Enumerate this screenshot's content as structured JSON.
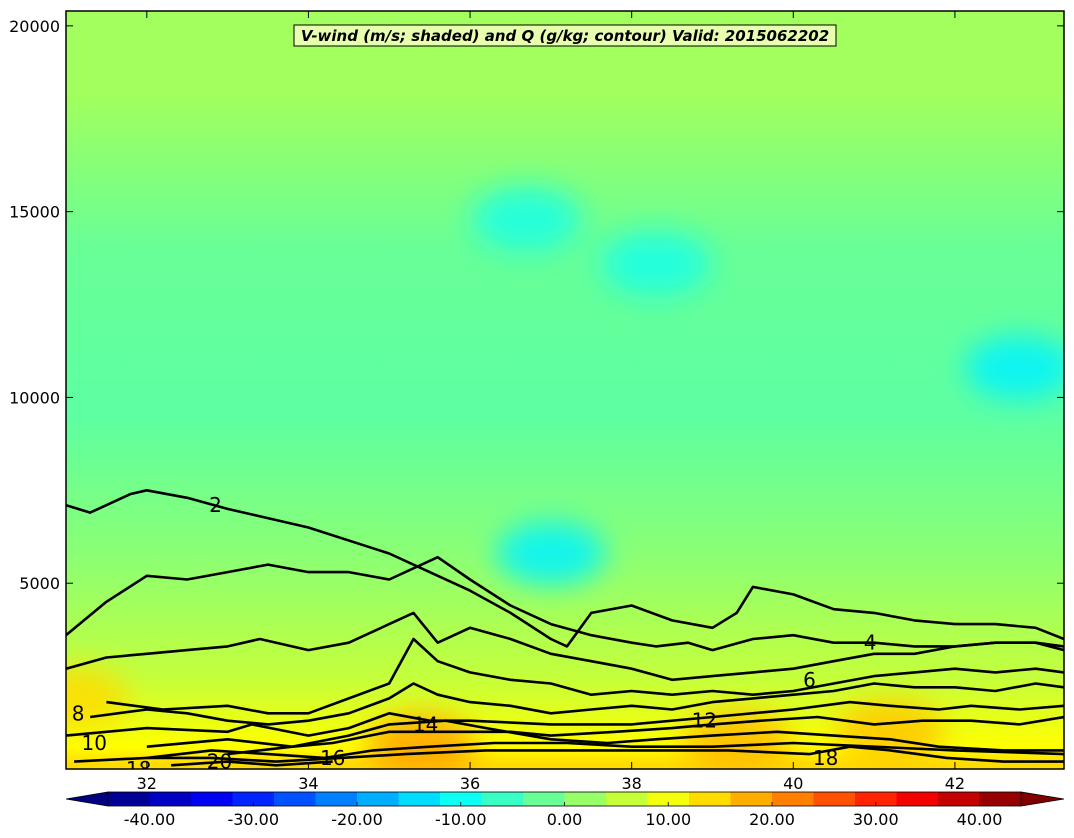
{
  "chart_data": {
    "type": "heatmap",
    "title": "V-wind (m/s; shaded) and Q (g/kg; contour) Valid: 2015062202",
    "xlabel": "",
    "ylabel": "",
    "xlim": [
      31.0,
      43.35
    ],
    "ylim": [
      0,
      20400
    ],
    "x_ticks": [
      32,
      34,
      36,
      38,
      40,
      42
    ],
    "y_ticks": [
      5000,
      10000,
      15000,
      20000
    ],
    "grid": false,
    "shaded_variable": "V-wind (m/s)",
    "contour_variable": "Q (g/kg)",
    "colorbar": {
      "orientation": "horizontal",
      "placement": "bottom",
      "min": -44,
      "max": 44,
      "extend": "both",
      "tick_values": [
        -40,
        -30,
        -20,
        -10,
        0,
        10,
        20,
        30,
        40
      ],
      "tick_labels": [
        "-40.00",
        "-30.00",
        "-20.00",
        "-10.00",
        "0.00",
        "10.00",
        "20.00",
        "30.00",
        "40.00"
      ]
    },
    "shaded_levels": [
      {
        "z_min": 0,
        "z_max": 300,
        "v": 14
      },
      {
        "z_min": 300,
        "z_max": 900,
        "v": 11
      },
      {
        "z_min": 900,
        "z_max": 1800,
        "v": 9
      },
      {
        "z_min": 1800,
        "z_max": 3000,
        "v": 6
      },
      {
        "z_min": 3000,
        "z_max": 4500,
        "v": 4
      },
      {
        "z_min": 4500,
        "z_max": 7000,
        "v": 1
      },
      {
        "z_min": 7000,
        "z_max": 12000,
        "v": -3
      },
      {
        "z_min": 12000,
        "z_max": 16000,
        "v": -2
      },
      {
        "z_min": 16000,
        "z_max": 20400,
        "v": 3
      }
    ],
    "shaded_features": [
      {
        "x": 37.0,
        "y": 5800,
        "v": -12
      },
      {
        "x": 36.7,
        "y": 14800,
        "v": -9
      },
      {
        "x": 38.3,
        "y": 13600,
        "v": -9
      },
      {
        "x": 42.8,
        "y": 10800,
        "v": -12
      },
      {
        "x": 35.4,
        "y": 600,
        "v": 19
      },
      {
        "x": 39.3,
        "y": 700,
        "v": 17
      },
      {
        "x": 41.2,
        "y": 1000,
        "v": 16
      },
      {
        "x": 31.1,
        "y": 1900,
        "v": 14
      }
    ],
    "contours": [
      {
        "level": 2,
        "points": [
          [
            31.0,
            7100
          ],
          [
            31.3,
            6900
          ],
          [
            31.8,
            7400
          ],
          [
            32.0,
            7500
          ],
          [
            32.5,
            7300
          ],
          [
            33.0,
            7000
          ],
          [
            34.0,
            6500
          ],
          [
            35.0,
            5800
          ],
          [
            35.5,
            5300
          ],
          [
            36.0,
            4800
          ],
          [
            36.5,
            4200
          ],
          [
            37.0,
            3500
          ],
          [
            37.2,
            3300
          ],
          [
            37.5,
            4200
          ],
          [
            38.0,
            4400
          ],
          [
            38.5,
            4000
          ],
          [
            39.0,
            3800
          ],
          [
            39.3,
            4200
          ],
          [
            39.5,
            4900
          ],
          [
            40.0,
            4700
          ],
          [
            40.5,
            4300
          ],
          [
            41.0,
            4200
          ],
          [
            41.5,
            4000
          ],
          [
            42.0,
            3900
          ],
          [
            42.5,
            3900
          ],
          [
            43.0,
            3800
          ],
          [
            43.35,
            3500
          ]
        ]
      },
      {
        "level": 3,
        "points": [
          [
            31.0,
            3600
          ],
          [
            31.5,
            4500
          ],
          [
            32.0,
            5200
          ],
          [
            32.5,
            5100
          ],
          [
            33.0,
            5300
          ],
          [
            33.5,
            5500
          ],
          [
            34.0,
            5300
          ],
          [
            34.5,
            5300
          ],
          [
            35.0,
            5100
          ],
          [
            35.6,
            5700
          ],
          [
            36.0,
            5100
          ],
          [
            36.5,
            4400
          ],
          [
            37.0,
            3900
          ],
          [
            37.5,
            3600
          ],
          [
            38.0,
            3400
          ],
          [
            38.3,
            3300
          ],
          [
            38.7,
            3400
          ],
          [
            39.0,
            3200
          ],
          [
            39.5,
            3500
          ],
          [
            40.0,
            3600
          ],
          [
            40.5,
            3400
          ],
          [
            41.0,
            3400
          ],
          [
            41.5,
            3300
          ],
          [
            42.0,
            3300
          ],
          [
            42.5,
            3400
          ],
          [
            43.0,
            3400
          ],
          [
            43.35,
            3200
          ]
        ]
      },
      {
        "level": 4,
        "points": [
          [
            31.0,
            2700
          ],
          [
            31.5,
            3000
          ],
          [
            32.0,
            3100
          ],
          [
            32.5,
            3200
          ],
          [
            33.0,
            3300
          ],
          [
            33.4,
            3500
          ],
          [
            34.0,
            3200
          ],
          [
            34.5,
            3400
          ],
          [
            35.0,
            3900
          ],
          [
            35.3,
            4200
          ],
          [
            35.6,
            3400
          ],
          [
            36.0,
            3800
          ],
          [
            36.5,
            3500
          ],
          [
            37.0,
            3100
          ],
          [
            37.5,
            2900
          ],
          [
            38.0,
            2700
          ],
          [
            38.5,
            2400
          ],
          [
            39.0,
            2500
          ],
          [
            39.5,
            2600
          ],
          [
            40.0,
            2700
          ],
          [
            40.5,
            2900
          ],
          [
            41.0,
            3100
          ],
          [
            41.5,
            3100
          ],
          [
            42.0,
            3300
          ],
          [
            42.5,
            3400
          ],
          [
            43.0,
            3400
          ],
          [
            43.35,
            3300
          ]
        ]
      },
      {
        "level": 6,
        "points": [
          [
            31.5,
            1800
          ],
          [
            32.2,
            1600
          ],
          [
            33.0,
            1700
          ],
          [
            33.5,
            1500
          ],
          [
            34.0,
            1500
          ],
          [
            34.5,
            1900
          ],
          [
            35.0,
            2300
          ],
          [
            35.3,
            3500
          ],
          [
            35.6,
            2900
          ],
          [
            36.0,
            2600
          ],
          [
            36.5,
            2400
          ],
          [
            37.0,
            2300
          ],
          [
            37.5,
            2000
          ],
          [
            38.0,
            2100
          ],
          [
            38.5,
            2000
          ],
          [
            39.0,
            2100
          ],
          [
            39.5,
            2000
          ],
          [
            40.0,
            2100
          ],
          [
            40.5,
            2300
          ],
          [
            41.0,
            2500
          ],
          [
            41.5,
            2600
          ],
          [
            42.0,
            2700
          ],
          [
            42.5,
            2600
          ],
          [
            43.0,
            2700
          ],
          [
            43.35,
            2600
          ]
        ]
      },
      {
        "level": 8,
        "points": [
          [
            31.3,
            1400
          ],
          [
            32.0,
            1600
          ],
          [
            32.5,
            1500
          ],
          [
            33.0,
            1300
          ],
          [
            33.5,
            1200
          ],
          [
            34.0,
            1300
          ],
          [
            34.5,
            1500
          ],
          [
            35.0,
            1900
          ],
          [
            35.3,
            2300
          ],
          [
            35.6,
            2000
          ],
          [
            36.0,
            1800
          ],
          [
            36.5,
            1700
          ],
          [
            37.0,
            1500
          ],
          [
            37.5,
            1600
          ],
          [
            38.0,
            1700
          ],
          [
            38.5,
            1600
          ],
          [
            39.0,
            1800
          ],
          [
            39.5,
            1900
          ],
          [
            40.0,
            2000
          ],
          [
            40.5,
            2100
          ],
          [
            41.0,
            2300
          ],
          [
            41.5,
            2200
          ],
          [
            42.0,
            2200
          ],
          [
            42.5,
            2100
          ],
          [
            43.0,
            2300
          ],
          [
            43.35,
            2200
          ]
        ]
      },
      {
        "level": 10,
        "points": [
          [
            31.0,
            900
          ],
          [
            32.0,
            1100
          ],
          [
            33.0,
            1000
          ],
          [
            33.3,
            1200
          ],
          [
            34.0,
            900
          ],
          [
            34.5,
            1100
          ],
          [
            35.0,
            1500
          ],
          [
            35.5,
            1300
          ],
          [
            36.0,
            1300
          ],
          [
            37.0,
            1200
          ],
          [
            38.0,
            1200
          ],
          [
            39.0,
            1400
          ],
          [
            40.0,
            1600
          ],
          [
            40.7,
            1800
          ],
          [
            41.2,
            1700
          ],
          [
            41.8,
            1600
          ],
          [
            42.2,
            1700
          ],
          [
            42.8,
            1600
          ],
          [
            43.35,
            1700
          ]
        ]
      },
      {
        "level": 12,
        "points": [
          [
            32.0,
            600
          ],
          [
            33.0,
            800
          ],
          [
            33.8,
            600
          ],
          [
            34.3,
            700
          ],
          [
            35.0,
            1000
          ],
          [
            35.5,
            1000
          ],
          [
            36.0,
            1000
          ],
          [
            36.5,
            1000
          ],
          [
            37.0,
            900
          ],
          [
            37.8,
            1000
          ],
          [
            38.5,
            1100
          ],
          [
            39.0,
            1200
          ],
          [
            39.6,
            1300
          ],
          [
            40.3,
            1400
          ],
          [
            41.0,
            1200
          ],
          [
            41.6,
            1300
          ],
          [
            42.2,
            1300
          ],
          [
            42.8,
            1200
          ],
          [
            43.35,
            1400
          ]
        ]
      },
      {
        "level": 14,
        "points": [
          [
            33.0,
            400
          ],
          [
            33.8,
            600
          ],
          [
            34.5,
            900
          ],
          [
            35.0,
            1200
          ],
          [
            35.7,
            1300
          ],
          [
            36.2,
            1100
          ],
          [
            37.0,
            800
          ],
          [
            37.7,
            700
          ],
          [
            38.3,
            800
          ],
          [
            39.0,
            900
          ],
          [
            39.8,
            1000
          ],
          [
            40.5,
            900
          ],
          [
            41.2,
            800
          ],
          [
            41.8,
            600
          ],
          [
            42.6,
            500
          ],
          [
            43.35,
            500
          ]
        ]
      },
      {
        "level": 16,
        "points": [
          [
            32.0,
            300
          ],
          [
            32.8,
            500
          ],
          [
            33.5,
            400
          ],
          [
            34.2,
            300
          ],
          [
            34.8,
            500
          ],
          [
            35.5,
            600
          ],
          [
            36.3,
            700
          ],
          [
            37.2,
            700
          ],
          [
            38.0,
            600
          ],
          [
            39.0,
            600
          ],
          [
            40.0,
            700
          ],
          [
            41.0,
            600
          ],
          [
            42.0,
            500
          ],
          [
            43.35,
            400
          ]
        ]
      },
      {
        "level": 18,
        "points": [
          [
            31.1,
            200
          ],
          [
            32.0,
            300
          ],
          [
            32.8,
            300
          ],
          [
            33.6,
            200
          ],
          [
            34.4,
            300
          ],
          [
            35.2,
            400
          ],
          [
            36.2,
            500
          ],
          [
            37.3,
            500
          ],
          [
            38.2,
            500
          ],
          [
            39.2,
            500
          ],
          [
            40.2,
            400
          ],
          [
            40.7,
            600
          ],
          [
            41.2,
            500
          ],
          [
            41.9,
            300
          ],
          [
            42.6,
            200
          ],
          [
            43.35,
            200
          ]
        ]
      },
      {
        "level": 20,
        "points": [
          [
            32.3,
            100
          ],
          [
            33.0,
            200
          ],
          [
            33.6,
            100
          ],
          [
            34.3,
            200
          ]
        ]
      }
    ],
    "contour_labels": [
      {
        "x": 32.85,
        "y": 7100,
        "text": "2"
      },
      {
        "x": 40.95,
        "y": 3400,
        "text": "4"
      },
      {
        "x": 40.2,
        "y": 2400,
        "text": "6"
      },
      {
        "x": 31.15,
        "y": 1500,
        "text": "8"
      },
      {
        "x": 31.35,
        "y": 700,
        "text": "10"
      },
      {
        "x": 38.9,
        "y": 1300,
        "text": "12"
      },
      {
        "x": 35.45,
        "y": 1200,
        "text": "14"
      },
      {
        "x": 34.3,
        "y": 300,
        "text": "16"
      },
      {
        "x": 40.4,
        "y": 300,
        "text": "18"
      },
      {
        "x": 31.9,
        "y": 0,
        "text": "18"
      },
      {
        "x": 32.9,
        "y": 200,
        "text": "20"
      }
    ]
  },
  "colors": {
    "colormap": "jet",
    "contour_line": "#000000",
    "title_box": "#ffffcc"
  }
}
